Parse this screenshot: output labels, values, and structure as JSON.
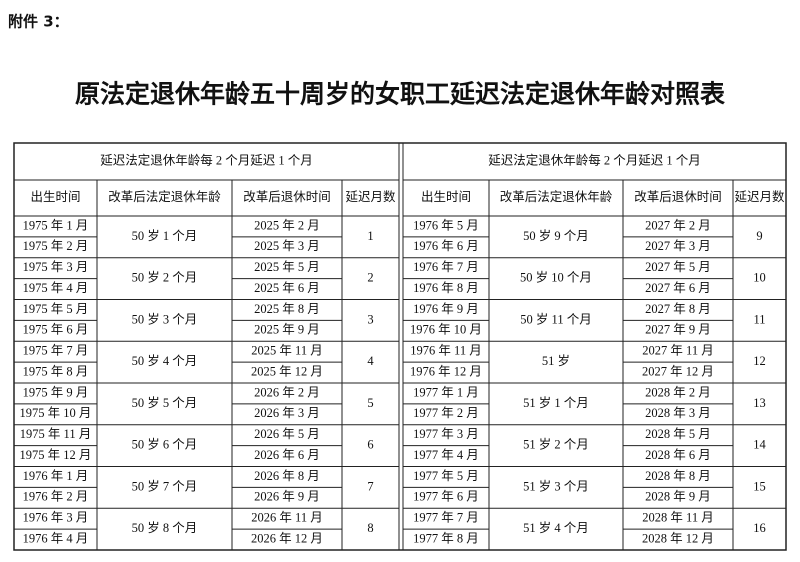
{
  "attachment": "附件 3：",
  "title": "原法定退休年龄五十周岁的女职工延迟法定退休年龄对照表",
  "tables": [
    {
      "header": "延迟法定退休年龄每 2 个月延迟 1 个月",
      "columns": [
        "出生时间",
        "改革后法定退休年龄",
        "改革后退休时间",
        "延迟月数"
      ],
      "groups": [
        {
          "births": [
            "1975 年 1 月",
            "1975 年 2 月"
          ],
          "age": "50 岁 1 个月",
          "retire": [
            "2025 年 2 月",
            "2025 年 3 月"
          ],
          "months": 1
        },
        {
          "births": [
            "1975 年 3 月",
            "1975 年 4 月"
          ],
          "age": "50 岁 2 个月",
          "retire": [
            "2025 年 5 月",
            "2025 年 6 月"
          ],
          "months": 2
        },
        {
          "births": [
            "1975 年 5 月",
            "1975 年 6 月"
          ],
          "age": "50 岁 3 个月",
          "retire": [
            "2025 年 8 月",
            "2025 年 9 月"
          ],
          "months": 3
        },
        {
          "births": [
            "1975 年 7 月",
            "1975 年 8 月"
          ],
          "age": "50 岁 4 个月",
          "retire": [
            "2025 年 11 月",
            "2025 年 12 月"
          ],
          "months": 4
        },
        {
          "births": [
            "1975 年 9 月",
            "1975 年 10 月"
          ],
          "age": "50 岁 5 个月",
          "retire": [
            "2026 年 2 月",
            "2026 年 3 月"
          ],
          "months": 5
        },
        {
          "births": [
            "1975 年 11 月",
            "1975 年 12 月"
          ],
          "age": "50 岁 6 个月",
          "retire": [
            "2026 年 5 月",
            "2026 年 6 月"
          ],
          "months": 6
        },
        {
          "births": [
            "1976 年 1 月",
            "1976 年 2 月"
          ],
          "age": "50 岁 7 个月",
          "retire": [
            "2026 年 8 月",
            "2026 年 9 月"
          ],
          "months": 7
        },
        {
          "births": [
            "1976 年 3 月",
            "1976 年 4 月"
          ],
          "age": "50 岁 8 个月",
          "retire": [
            "2026 年 11 月",
            "2026 年 12 月"
          ],
          "months": 8
        }
      ]
    },
    {
      "header": "延迟法定退休年龄每 2 个月延迟 1 个月",
      "columns": [
        "出生时间",
        "改革后法定退休年龄",
        "改革后退休时间",
        "延迟月数"
      ],
      "groups": [
        {
          "births": [
            "1976 年 5 月",
            "1976 年 6 月"
          ],
          "age": "50 岁 9 个月",
          "retire": [
            "2027 年 2 月",
            "2027 年 3 月"
          ],
          "months": 9
        },
        {
          "births": [
            "1976 年 7 月",
            "1976 年 8 月"
          ],
          "age": "50 岁 10 个月",
          "retire": [
            "2027 年 5 月",
            "2027 年 6 月"
          ],
          "months": 10
        },
        {
          "births": [
            "1976 年 9 月",
            "1976 年 10 月"
          ],
          "age": "50 岁 11 个月",
          "retire": [
            "2027 年 8 月",
            "2027 年 9 月"
          ],
          "months": 11
        },
        {
          "births": [
            "1976 年 11 月",
            "1976 年 12 月"
          ],
          "age": "51 岁",
          "retire": [
            "2027 年 11 月",
            "2027 年 12 月"
          ],
          "months": 12
        },
        {
          "births": [
            "1977 年 1 月",
            "1977 年 2 月"
          ],
          "age": "51 岁 1 个月",
          "retire": [
            "2028 年 2 月",
            "2028 年 3 月"
          ],
          "months": 13
        },
        {
          "births": [
            "1977 年 3 月",
            "1977 年 4 月"
          ],
          "age": "51 岁 2 个月",
          "retire": [
            "2028 年 5 月",
            "2028 年 6 月"
          ],
          "months": 14
        },
        {
          "births": [
            "1977 年 5 月",
            "1977 年 6 月"
          ],
          "age": "51 岁 3 个月",
          "retire": [
            "2028 年 8 月",
            "2028 年 9 月"
          ],
          "months": 15
        },
        {
          "births": [
            "1977 年 7 月",
            "1977 年 8 月"
          ],
          "age": "51 岁 4 个月",
          "retire": [
            "2028 年 11 月",
            "2028 年 12 月"
          ],
          "months": 16
        }
      ]
    }
  ]
}
